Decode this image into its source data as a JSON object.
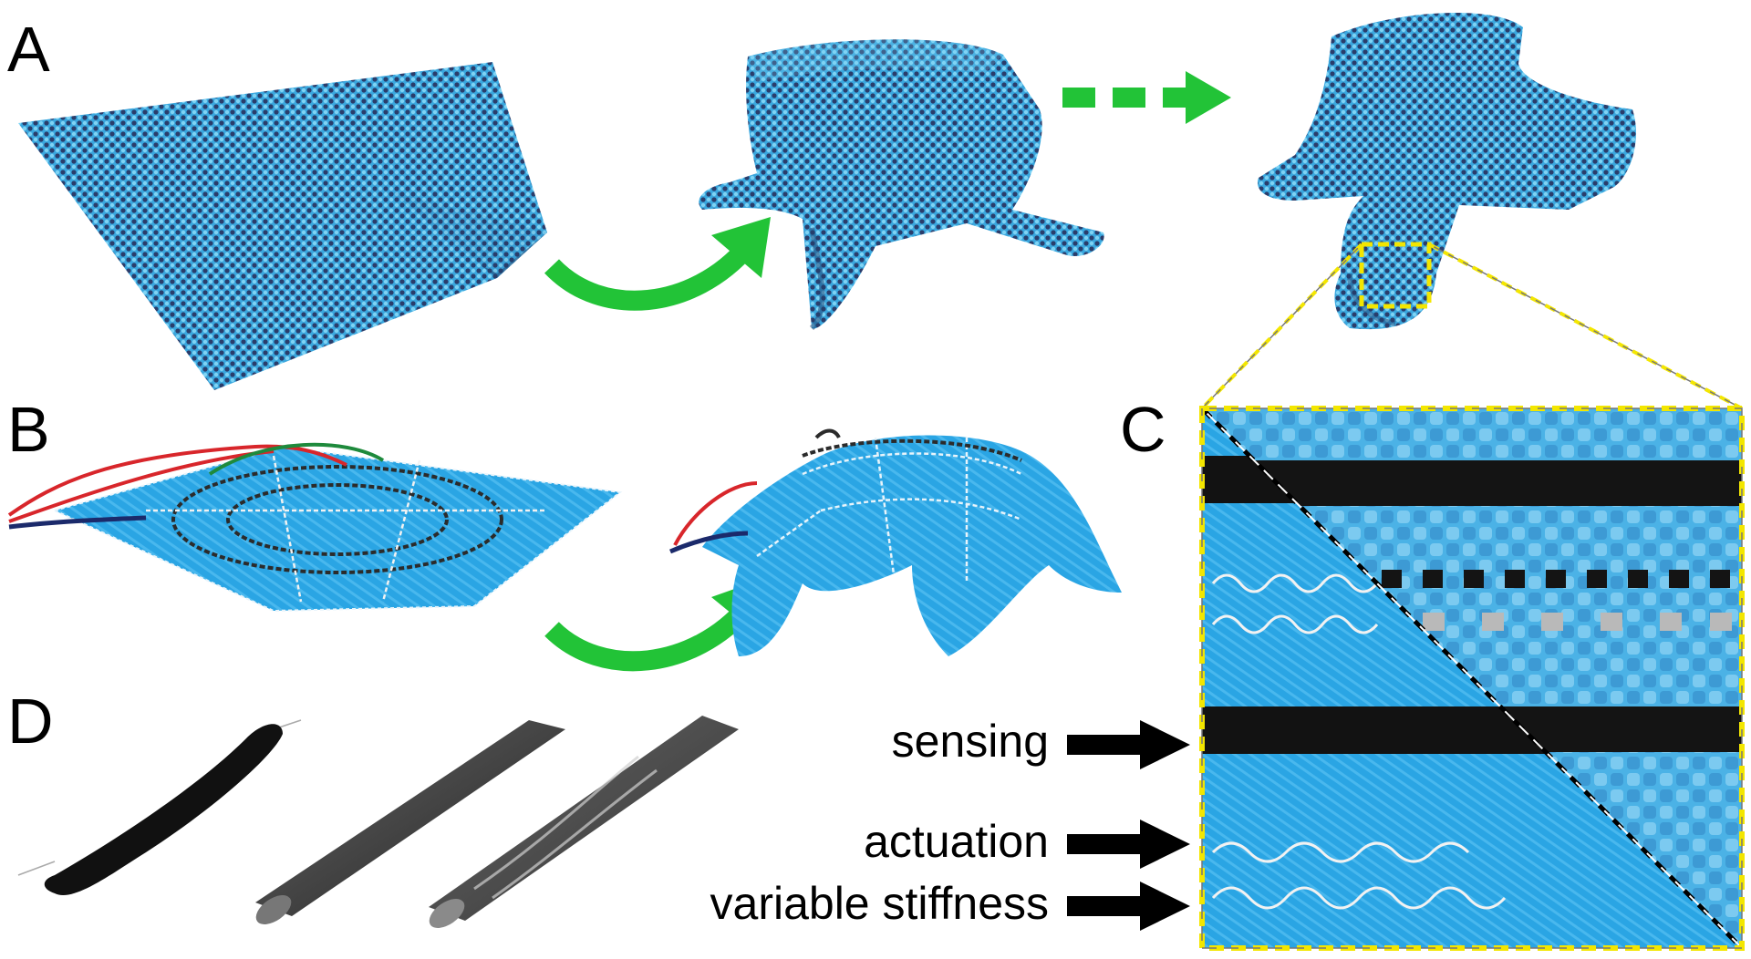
{
  "panels": {
    "a": "A",
    "b": "B",
    "c": "C",
    "d": "D"
  },
  "callouts": {
    "sensing": "sensing",
    "actuation": "actuation",
    "variable_stiffness": "variable stiffness"
  },
  "colors": {
    "fabric_blue": "#2ea3e0",
    "fabric_light": "#6cc6ef",
    "arrow_green": "#22c337",
    "zoom_yellow": "#f3e600",
    "sensor_black": "#111111",
    "wire_red": "#d8262b",
    "wire_green": "#1e8a3c"
  }
}
